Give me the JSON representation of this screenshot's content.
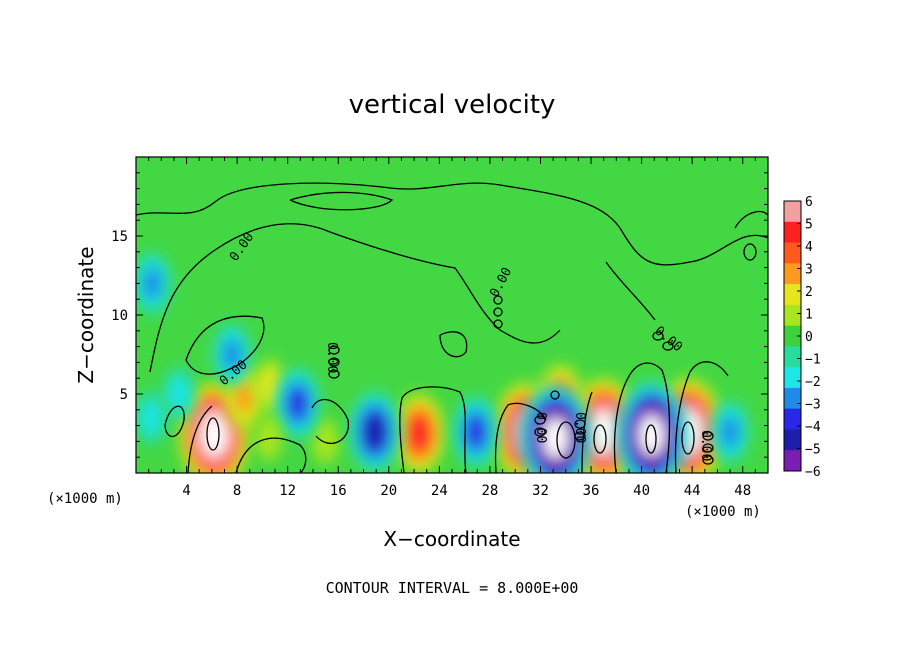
{
  "chart_data": {
    "type": "heatmap",
    "title": "vertical velocity",
    "xlabel": "X−coordinate",
    "ylabel": "Z−coordinate",
    "x_unit": "(×1000 m)",
    "x_unit_right": "(×1000 m)",
    "note": "CONTOUR INTERVAL = 8.000E+00",
    "xlim": [
      0,
      50
    ],
    "ylim": [
      0,
      20
    ],
    "x_ticks": [
      4,
      8,
      12,
      16,
      20,
      24,
      28,
      32,
      36,
      40,
      44,
      48
    ],
    "x_tick_labels": [
      "4",
      "8",
      "12",
      "16",
      "20",
      "24",
      "28",
      "32",
      "36",
      "40",
      "44",
      "48"
    ],
    "y_ticks": [
      5,
      10,
      15
    ],
    "y_tick_labels": [
      "5",
      "10",
      "15"
    ],
    "colorbar": {
      "range": [
        -6,
        6
      ],
      "ticks": [
        6,
        5,
        4,
        3,
        2,
        1,
        0,
        -1,
        -2,
        -3,
        -4,
        -5,
        -6
      ],
      "tick_labels": [
        "6",
        "5",
        "4",
        "3",
        "2",
        "1",
        "0",
        "−1",
        "−2",
        "−3",
        "−4",
        "−5",
        "−6"
      ],
      "colors": [
        "#f3a0a0",
        "#ff2020",
        "#ff5a1e",
        "#ff9a1e",
        "#e6e61e",
        "#a8e61e",
        "#3cd23c",
        "#28dca0",
        "#1ee6e6",
        "#1e8ce6",
        "#2828e6",
        "#1e1eaa",
        "#7a1eb4"
      ]
    },
    "contour_labels": [
      "0.00",
      "0.00",
      "0.00",
      "0.00",
      "0.00",
      "0.00",
      "0.00",
      "0.00"
    ],
    "features": [
      {
        "x": 6.2,
        "z": 2.4,
        "w": 8.0
      },
      {
        "x": 8.6,
        "z": 4.8,
        "w": 3.2
      },
      {
        "x": 10.6,
        "z": 5.5,
        "w": 2.2
      },
      {
        "x": 22.4,
        "z": 2.5,
        "w": 4.6
      },
      {
        "x": 30.8,
        "z": 2.6,
        "w": 7.0
      },
      {
        "x": 37.0,
        "z": 2.6,
        "w": 8.0
      },
      {
        "x": 43.7,
        "z": 2.6,
        "w": 8.0
      },
      {
        "x": 33.6,
        "z": 4.6,
        "w": 3.5
      },
      {
        "x": 15.0,
        "z": 2.0,
        "w": 1.2
      },
      {
        "x": 33.2,
        "z": 2.2,
        "w": -7.5
      },
      {
        "x": 40.8,
        "z": 2.4,
        "w": -7.5
      },
      {
        "x": 18.9,
        "z": 2.6,
        "w": -5.0
      },
      {
        "x": 12.8,
        "z": 4.4,
        "w": -3.6
      },
      {
        "x": 26.9,
        "z": 2.6,
        "w": -3.5
      },
      {
        "x": 47.0,
        "z": 2.6,
        "w": -3.2
      },
      {
        "x": 1.3,
        "z": 12.0,
        "w": -3.0
      },
      {
        "x": 7.6,
        "z": 7.5,
        "w": -2.5
      },
      {
        "x": 1.2,
        "z": 3.5,
        "w": -2.4
      },
      {
        "x": 3.4,
        "z": 5.0,
        "w": -2.0
      },
      {
        "x": 10.5,
        "z": 2.2,
        "w": 1.2
      }
    ]
  }
}
